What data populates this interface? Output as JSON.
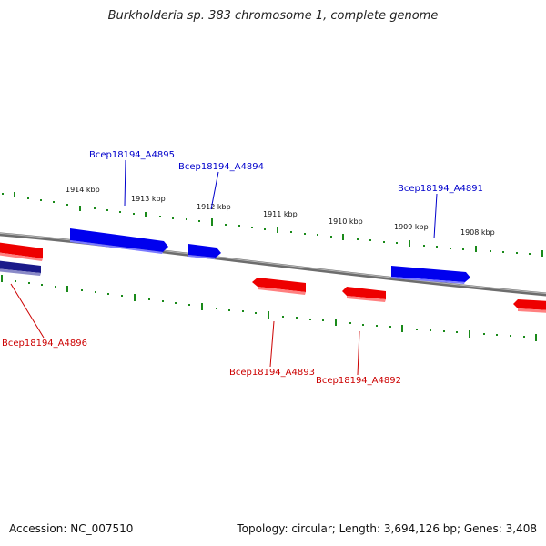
{
  "title": "Burkholderia sp. 383 chromosome 1, complete genome",
  "footer": {
    "accession": "Accession: NC_007510",
    "summary": "Topology: circular; Length: 3,694,126 bp; Genes: 3,408"
  },
  "colors": {
    "forward_gene": "#0000ee",
    "reverse_gene": "#ee0000",
    "backbone": "#8a8a8a",
    "tick": "#1a8a1a",
    "forward_label": "#0000cc",
    "reverse_label": "#cc0000"
  },
  "kbp_labels": [
    "1914 kbp",
    "1913 kbp",
    "1912 kbp",
    "1911 kbp",
    "1910 kbp",
    "1909 kbp",
    "1908 kbp"
  ],
  "genes": [
    {
      "name": "Bcep18194_A4895",
      "strand": "forward"
    },
    {
      "name": "Bcep18194_A4894",
      "strand": "forward"
    },
    {
      "name": "Bcep18194_A4891",
      "strand": "forward"
    },
    {
      "name": "Bcep18194_A4896",
      "strand": "reverse"
    },
    {
      "name": "Bcep18194_A4893",
      "strand": "reverse"
    },
    {
      "name": "Bcep18194_A4892",
      "strand": "reverse"
    }
  ]
}
